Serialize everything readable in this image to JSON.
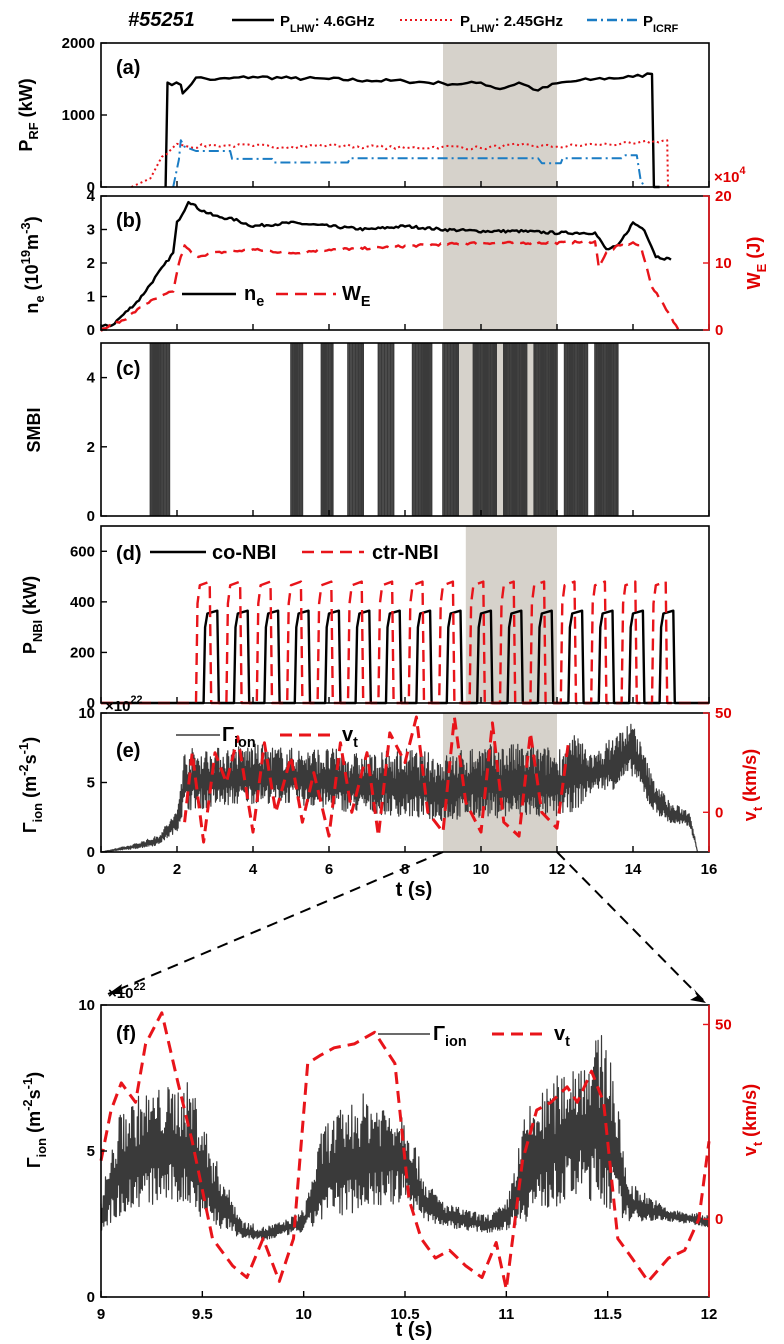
{
  "shot": "#55251",
  "colors": {
    "black": "#000000",
    "red": "#e8141a",
    "blue": "#1a7cc4",
    "dark": "#3a3a3a",
    "shade": "#d6d2cb"
  },
  "top_legend": [
    "P_LHW: 4.6GHz",
    "P_LHW: 2.45GHz",
    "P_ICRF"
  ],
  "chart_data": [
    {
      "panel": "(a)",
      "type": "line",
      "ylabel": "P_RF (kW)",
      "ylim": [
        0,
        2000
      ],
      "yticks": [
        0,
        1000,
        2000
      ],
      "xlim": [
        0,
        16
      ],
      "shaded_x": [
        9,
        12
      ],
      "right_exponent": "×10^4",
      "series": [
        {
          "name": "P_LHW: 4.6GHz",
          "color": "#000000",
          "style": "solid",
          "x": [
            1.7,
            1.75,
            2.1,
            2.15,
            2.5,
            3,
            4,
            5,
            6,
            7,
            8,
            9,
            9.5,
            10,
            10.5,
            11,
            11.5,
            12,
            13,
            14,
            14.5,
            14.55,
            14.7
          ],
          "y": [
            0,
            1450,
            1420,
            1300,
            1520,
            1490,
            1530,
            1510,
            1500,
            1480,
            1470,
            1440,
            1430,
            1450,
            1360,
            1450,
            1340,
            1440,
            1500,
            1530,
            1570,
            0,
            0
          ]
        },
        {
          "name": "P_LHW: 2.45GHz",
          "color": "#e8141a",
          "style": "dotted",
          "x": [
            0.8,
            1.3,
            1.6,
            2.0,
            2.3,
            3,
            4,
            5,
            6,
            7,
            8,
            9,
            10,
            11,
            12,
            13,
            14,
            14.9,
            14.92
          ],
          "y": [
            0,
            120,
            420,
            600,
            560,
            580,
            570,
            560,
            580,
            560,
            540,
            560,
            540,
            580,
            560,
            590,
            600,
            650,
            0
          ]
        },
        {
          "name": "P_ICRF",
          "color": "#1a7cc4",
          "style": "dashdot",
          "x": [
            1.9,
            2.05,
            2.1,
            2.2,
            2.5,
            3.4,
            3.45,
            4.5,
            4.55,
            6.5,
            6.55,
            9,
            11.5,
            11.6,
            12.1,
            12.15,
            13.7,
            13.8,
            14.1,
            14.2,
            14.3
          ],
          "y": [
            0,
            380,
            650,
            560,
            500,
            500,
            390,
            390,
            340,
            340,
            400,
            400,
            400,
            330,
            330,
            400,
            400,
            440,
            440,
            100,
            0
          ]
        }
      ]
    },
    {
      "panel": "(b)",
      "type": "line",
      "ylabel": "n_e (10^19 m^-3)",
      "ylim": [
        0,
        4
      ],
      "yticks": [
        0,
        1,
        2,
        3,
        4
      ],
      "y2label": "W_E (J)",
      "y2lim": [
        0,
        20
      ],
      "y2ticks": [
        0,
        10,
        20
      ],
      "xlim": [
        0,
        16
      ],
      "shaded_x": [
        9,
        12
      ],
      "series": [
        {
          "name": "n_e",
          "color": "#000000",
          "style": "solid",
          "axis": "left",
          "x": [
            0,
            0.3,
            1.0,
            1.9,
            2.0,
            2.2,
            2.3,
            2.6,
            3,
            3.5,
            4,
            5,
            6,
            7,
            8,
            9,
            10,
            11,
            12,
            13,
            13.3,
            13.6,
            14,
            14.3,
            14.6,
            15
          ],
          "y": [
            0.1,
            0.15,
            0.9,
            2.3,
            3.2,
            3.6,
            3.85,
            3.6,
            3.4,
            3.3,
            3.1,
            3.2,
            3.1,
            3.0,
            3.1,
            3.0,
            2.95,
            2.95,
            2.9,
            2.9,
            2.4,
            2.5,
            3.2,
            3.0,
            2.2,
            2.1
          ]
        },
        {
          "name": "W_E",
          "color": "#e8141a",
          "style": "dashed",
          "axis": "right",
          "x": [
            0,
            0.6,
            1.2,
            1.9,
            2.05,
            2.2,
            2.5,
            3,
            4,
            5,
            6,
            7,
            8,
            9,
            10,
            11,
            12,
            13,
            13.1,
            13.3,
            13.6,
            14.0,
            14.2,
            14.5,
            15,
            15.2
          ],
          "y": [
            0,
            1.5,
            4,
            5.8,
            10,
            12.5,
            11,
            11.5,
            12,
            11.5,
            12,
            12.2,
            12.5,
            12.8,
            13,
            13,
            13,
            13.2,
            9.5,
            11.5,
            12.5,
            13,
            12.5,
            6.5,
            2.0,
            0
          ]
        }
      ]
    },
    {
      "panel": "(c)",
      "type": "bar",
      "ylabel": "SMBI",
      "ylim": [
        0,
        5
      ],
      "yticks": [
        0,
        2,
        4
      ],
      "xlim": [
        0,
        16
      ],
      "shaded_x": [
        9,
        12
      ],
      "pulse_height": 5,
      "pulse_groups": [
        [
          1.3,
          1.8
        ],
        [
          5.0,
          5.3
        ],
        [
          5.8,
          6.1
        ],
        [
          6.5,
          6.9
        ],
        [
          7.3,
          7.7
        ],
        [
          8.2,
          8.7
        ],
        [
          9.0,
          9.4
        ],
        [
          9.8,
          10.4
        ],
        [
          10.6,
          11.2
        ],
        [
          11.4,
          12.0
        ],
        [
          12.2,
          12.8
        ],
        [
          13.0,
          13.6
        ]
      ]
    },
    {
      "panel": "(d)",
      "type": "line",
      "ylabel": "P_NBI (kW)",
      "ylim": [
        0,
        700
      ],
      "yticks": [
        0,
        200,
        400,
        600
      ],
      "xlim": [
        0,
        16
      ],
      "shaded_x": [
        9.6,
        12
      ],
      "right_exponent": "×10^22",
      "series": [
        {
          "name": "co-NBI",
          "color": "#000000",
          "style": "solid",
          "modulation": {
            "start": 2.7,
            "period": 0.8,
            "on_fraction": 0.5,
            "level": 365,
            "count": 16
          }
        },
        {
          "name": "ctr-NBI",
          "color": "#e8141a",
          "style": "dashed",
          "modulation": {
            "start": 2.5,
            "period": 0.8,
            "on_fraction": 0.5,
            "level": 480,
            "count": 16
          }
        }
      ]
    },
    {
      "panel": "(e)",
      "type": "line",
      "ylabel": "Γ_ion (m^-2 s^-1)",
      "ylim": [
        0,
        10
      ],
      "yticks": [
        0,
        5,
        10
      ],
      "y2label": "v_t (km/s)",
      "y2lim": [
        -20,
        50
      ],
      "y2ticks": [
        0,
        50
      ],
      "xlim": [
        0,
        16
      ],
      "xticks": [
        0,
        2,
        4,
        6,
        8,
        10,
        12,
        14,
        16
      ],
      "xlabel": "t (s)",
      "shaded_x": [
        9,
        12
      ],
      "series": [
        {
          "name": "Γ_ion",
          "color": "#3a3a3a",
          "style": "solid",
          "axis": "left",
          "envelope": {
            "x": [
              0,
              0.8,
              1.5,
              2.0,
              2.2,
              3,
              4,
              5,
              6,
              7,
              8,
              9,
              10,
              11,
              12,
              12.5,
              13,
              13.5,
              14,
              14.5,
              15,
              15.5,
              15.7
            ],
            "low": [
              0,
              0.2,
              0.5,
              1.5,
              3,
              3.2,
              3.5,
              3.5,
              3,
              2.8,
              2.5,
              2.2,
              2.5,
              2.4,
              2.5,
              3,
              4.5,
              4.5,
              5.5,
              3.0,
              2.0,
              1.8,
              0
            ],
            "high": [
              0,
              0.5,
              1.2,
              3.0,
              7.5,
              7.5,
              7.8,
              7.5,
              7.5,
              7.0,
              7.5,
              7.0,
              7.8,
              7.8,
              7.5,
              8.5,
              7.0,
              8.5,
              9.5,
              5.5,
              3.5,
              3.0,
              0
            ]
          }
        },
        {
          "name": "v_t",
          "color": "#e8141a",
          "style": "dashed",
          "axis": "right",
          "x": [
            2.2,
            2.4,
            2.7,
            3.0,
            3.3,
            3.6,
            4.0,
            4.3,
            4.6,
            5.0,
            5.3,
            5.6,
            6.0,
            6.3,
            6.6,
            7.0,
            7.3,
            7.6,
            8.0,
            8.3,
            8.6,
            9.0,
            9.3,
            9.6,
            10.0,
            10.3,
            10.6,
            11.0,
            11.3,
            11.6,
            12.0,
            12.3
          ],
          "y": [
            -5,
            30,
            -15,
            30,
            15,
            38,
            -10,
            35,
            0,
            28,
            -5,
            20,
            -12,
            35,
            0,
            30,
            -12,
            40,
            25,
            48,
            0,
            -10,
            48,
            5,
            -10,
            45,
            -5,
            -12,
            40,
            0,
            -8,
            35
          ]
        }
      ]
    },
    {
      "panel": "(f)",
      "type": "line",
      "ylabel": "Γ_ion (m^-2 s^-1)",
      "ylim": [
        0,
        10
      ],
      "yticks": [
        0,
        5,
        10
      ],
      "y2label": "v_t (km/s)",
      "y2lim": [
        -20,
        55
      ],
      "y2ticks": [
        0,
        50
      ],
      "xlim": [
        9,
        12
      ],
      "xticks": [
        9,
        9.5,
        10,
        10.5,
        11,
        11.5,
        12
      ],
      "xlabel": "t (s)",
      "left_exponent": "×10^22",
      "series": [
        {
          "name": "Γ_ion",
          "color": "#3a3a3a",
          "style": "solid",
          "axis": "left",
          "envelope": {
            "x": [
              9.0,
              9.1,
              9.2,
              9.3,
              9.45,
              9.55,
              9.7,
              9.8,
              9.9,
              10.0,
              10.1,
              10.3,
              10.5,
              10.6,
              10.7,
              10.8,
              10.9,
              11.0,
              11.1,
              11.2,
              11.3,
              11.4,
              11.5,
              11.6,
              11.8,
              12.0
            ],
            "low": [
              2.2,
              2.8,
              3.0,
              3.2,
              3.0,
              2.4,
              2.0,
              1.9,
              2.1,
              2.2,
              2.6,
              3.0,
              3.2,
              2.6,
              2.4,
              2.3,
              2.2,
              2.3,
              2.6,
              3.0,
              3.2,
              3.3,
              3.0,
              2.6,
              2.6,
              2.4
            ],
            "high": [
              3.5,
              6.5,
              7.0,
              7.2,
              7.4,
              5.0,
              2.6,
              2.4,
              2.6,
              3.0,
              6.0,
              7.0,
              6.5,
              4.0,
              3.2,
              3.0,
              2.8,
              3.2,
              6.5,
              7.2,
              8.0,
              8.6,
              9.2,
              4.0,
              3.0,
              2.8
            ]
          }
        },
        {
          "name": "v_t",
          "color": "#e8141a",
          "style": "dashed",
          "axis": "right",
          "x": [
            9.0,
            9.05,
            9.1,
            9.17,
            9.22,
            9.3,
            9.38,
            9.45,
            9.55,
            9.65,
            9.72,
            9.8,
            9.88,
            9.95,
            10.02,
            10.08,
            10.15,
            10.25,
            10.35,
            10.45,
            10.52,
            10.58,
            10.65,
            10.72,
            10.8,
            10.88,
            10.95,
            11.0,
            11.08,
            11.15,
            11.22,
            11.3,
            11.35,
            11.42,
            11.48,
            11.55,
            11.62,
            11.7,
            11.8,
            11.88,
            11.95,
            12.0
          ],
          "y": [
            15,
            28,
            35,
            30,
            45,
            53,
            35,
            20,
            -5,
            -12,
            -15,
            -5,
            -16,
            -5,
            40,
            42,
            44,
            45,
            48,
            40,
            5,
            -5,
            -10,
            -8,
            -12,
            -15,
            -6,
            -18,
            15,
            28,
            30,
            34,
            30,
            38,
            30,
            -5,
            -10,
            -16,
            -10,
            -8,
            0,
            20
          ]
        }
      ]
    }
  ],
  "panel_text": {
    "a_label": "(a)",
    "b_label": "(b)",
    "c_label": "(c)",
    "d_label": "(d)",
    "e_label": "(e)",
    "f_label": "(f)",
    "a_ylabel": "P",
    "a_ylabel_sub": "RF",
    "a_ylabel_unit": "(kW)",
    "b_ylabel_main": "n",
    "b_ylabel_sub": "e",
    "b_ylabel_unit": "(10",
    "b_ylabel_exp": "19",
    "b_ylabel_m": "m",
    "b_ylabel_mexp": "-3",
    "b_ylabel_close": ")",
    "b_y2label": "W",
    "b_y2label_sub": "E",
    "b_y2label_unit": "(J)",
    "c_ylabel": "SMBI",
    "d_ylabel": "P",
    "d_ylabel_sub": "NBI",
    "d_ylabel_unit": "(kW)",
    "e_ylabel": "Γ",
    "e_ylabel_sub": "ion",
    "e_ylabel_unit": "(m",
    "e_exp1": "-2",
    "e_s": "s",
    "e_exp2": "-1",
    "e_close": ")",
    "e_y2label": "v",
    "e_y2label_sub": "t",
    "e_y2label_unit": "(km/s)",
    "xlabel": "t (s)",
    "legend_b": {
      "ne": "n",
      "ne_sub": "e",
      "we": "W",
      "we_sub": "E"
    },
    "legend_d": {
      "co": "co-NBI",
      "ctr": "ctr-NBI"
    },
    "legend_e": {
      "g": "Γ",
      "g_sub": "ion",
      "v": "v",
      "v_sub": "t"
    },
    "exp_10x4": "×10",
    "exp_4": "4",
    "exp_10x22": "×10",
    "exp_22": "22"
  }
}
